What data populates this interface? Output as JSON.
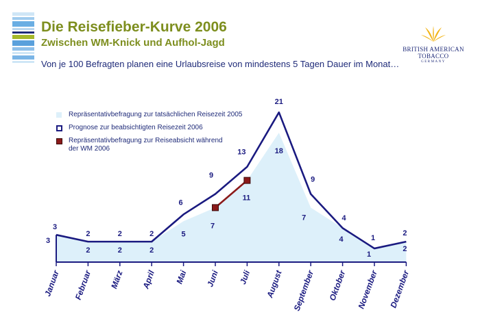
{
  "header": {
    "title": "Die Reisefieber-Kurve 2006",
    "subtitle": "Zwischen WM-Knick und Aufhol-Jagd",
    "intro": "Von je 100 Befragten planen eine Urlaubsreise von mindestens 5 Tagen Dauer im Monat…"
  },
  "brand": {
    "name_line1": "BRITISH AMERICAN",
    "name_line2": "TOBACCO",
    "country": "GERMANY"
  },
  "legend": {
    "area": "Repräsentativbefragung zur tatsächlichen Reisezeit 2005",
    "forecast": "Prognose zur beabsichtigten Reisezeit 2006",
    "wm": "Repräsentativbefragung zur Reiseabsicht während der WM 2006"
  },
  "colors": {
    "title": "#7d8e1e",
    "text": "#1e2a78",
    "forecast_line": "#1a1a80",
    "area_fill": "#ddf0fa",
    "wm_line": "#8b1a1a"
  },
  "chart_data": {
    "type": "line",
    "categories": [
      "Januar",
      "Februar",
      "März",
      "April",
      "Mai",
      "Juni",
      "Juli",
      "August",
      "September",
      "Oktober",
      "November",
      "Dezember"
    ],
    "series": [
      {
        "name": "Repräsentativbefragung zur tatsächlichen Reisezeit 2005",
        "kind": "area",
        "values": [
          3,
          2,
          2,
          2,
          5,
          7,
          11,
          18,
          7,
          4,
          1,
          2
        ]
      },
      {
        "name": "Prognose zur beabsichtigten Reisezeit 2006",
        "kind": "line",
        "values": [
          3,
          2,
          2,
          2,
          6,
          9,
          13,
          21,
          9,
          4,
          1,
          2
        ]
      },
      {
        "name": "Repräsentativbefragung zur Reiseabsicht während der WM 2006",
        "kind": "segment",
        "values": [
          null,
          null,
          null,
          null,
          null,
          7,
          11,
          null,
          null,
          null,
          null,
          null
        ]
      }
    ],
    "ylim": [
      0,
      21
    ],
    "grid": false,
    "legend_position": "top-left"
  }
}
